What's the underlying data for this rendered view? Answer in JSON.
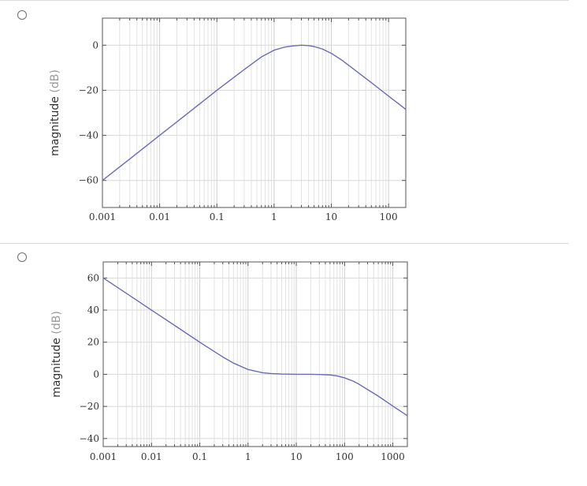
{
  "options": [
    {
      "label": "",
      "selected": false
    },
    {
      "label": "",
      "selected": false
    }
  ],
  "chart_data": [
    {
      "type": "line",
      "title": "",
      "xlabel": "",
      "ylabel": "magnitude",
      "ylabel_unit": "(dB)",
      "x_scale": "log",
      "xlim": [
        0.001,
        200
      ],
      "ylim": [
        -72,
        12
      ],
      "x_ticks": [
        0.001,
        0.01,
        0.1,
        1,
        10,
        100
      ],
      "x_tick_labels": [
        "0.001",
        "0.01",
        "0.1",
        "1",
        "10",
        "100"
      ],
      "y_ticks": [
        0,
        -20,
        -40,
        -60
      ],
      "y_tick_labels": [
        "0",
        "−20",
        "−40",
        "−60"
      ],
      "grid": true,
      "line_color": "#6b6bb8",
      "series": [
        {
          "x": [
            0.001,
            0.003,
            0.01,
            0.03,
            0.1,
            0.3,
            0.6,
            1,
            1.5,
            2,
            3,
            4,
            5,
            7,
            10,
            15,
            20,
            30,
            50,
            70,
            100,
            150,
            200
          ],
          "y": [
            -60,
            -50.5,
            -40,
            -30.5,
            -20,
            -10.8,
            -5.2,
            -2.2,
            -0.9,
            -0.4,
            0,
            -0.2,
            -0.6,
            -1.7,
            -3.6,
            -6.5,
            -8.9,
            -12.3,
            -16.6,
            -19.5,
            -22.6,
            -26,
            -28.5
          ]
        }
      ]
    },
    {
      "type": "line",
      "title": "",
      "xlabel": "",
      "ylabel": "magnitude",
      "ylabel_unit": "(dB)",
      "x_scale": "log",
      "xlim": [
        0.001,
        2000
      ],
      "ylim": [
        -45,
        70
      ],
      "x_ticks": [
        0.001,
        0.01,
        0.1,
        1,
        10,
        100,
        1000
      ],
      "x_tick_labels": [
        "0.001",
        "0.01",
        "0.1",
        "1",
        "10",
        "100",
        "1000"
      ],
      "y_ticks": [
        60,
        40,
        20,
        0,
        -20,
        -40
      ],
      "y_tick_labels": [
        "60",
        "40",
        "20",
        "0",
        "−20",
        "−40"
      ],
      "grid": true,
      "line_color": "#6b6bb8",
      "series": [
        {
          "x": [
            0.001,
            0.003,
            0.01,
            0.03,
            0.1,
            0.3,
            0.5,
            1,
            2,
            3,
            5,
            10,
            20,
            30,
            50,
            70,
            100,
            150,
            200,
            300,
            500,
            1000,
            2000
          ],
          "y": [
            60,
            50.5,
            40,
            30.5,
            20,
            10.8,
            7,
            3,
            1,
            0.5,
            0.2,
            0,
            0,
            -0.1,
            -0.4,
            -1,
            -2.2,
            -4.2,
            -6.2,
            -9.5,
            -13.6,
            -19.8,
            -25.8
          ]
        }
      ]
    }
  ]
}
